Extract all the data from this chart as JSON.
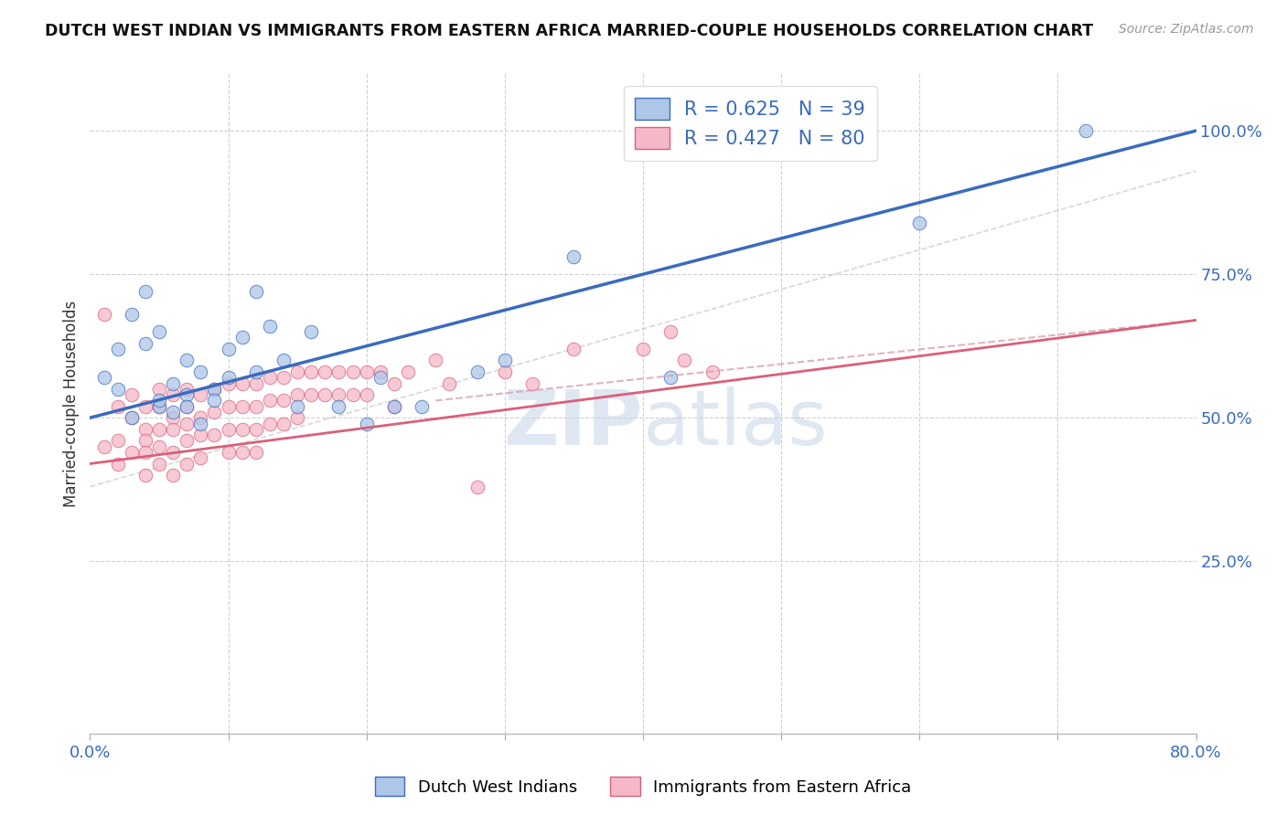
{
  "title": "DUTCH WEST INDIAN VS IMMIGRANTS FROM EASTERN AFRICA MARRIED-COUPLE HOUSEHOLDS CORRELATION CHART",
  "source": "Source: ZipAtlas.com",
  "ylabel": "Married-couple Households",
  "ytick_labels": [
    "",
    "25.0%",
    "50.0%",
    "75.0%",
    "100.0%"
  ],
  "ytick_vals": [
    0.0,
    0.25,
    0.5,
    0.75,
    1.0
  ],
  "xtick_vals": [
    0.0,
    0.1,
    0.2,
    0.3,
    0.4,
    0.5,
    0.6,
    0.7,
    0.8
  ],
  "xlim": [
    0.0,
    0.8
  ],
  "ylim": [
    -0.05,
    1.1
  ],
  "blue_R": 0.625,
  "blue_N": 39,
  "pink_R": 0.427,
  "pink_N": 80,
  "legend_label_blue": "Dutch West Indians",
  "legend_label_pink": "Immigrants from Eastern Africa",
  "blue_color": "#aec6e8",
  "blue_line_color": "#3a6bbd",
  "pink_color": "#f5b8c8",
  "pink_line_color": "#d9607a",
  "pink_dashed_color": "#d9a0b0",
  "dashed_line_color": "#c8c8c8",
  "watermark_zip": "ZIP",
  "watermark_atlas": "atlas",
  "blue_line_y0": 0.5,
  "blue_line_y1": 1.0,
  "pink_line_y0": 0.42,
  "pink_line_y1": 0.67,
  "blue_scatter_x": [
    0.01,
    0.02,
    0.02,
    0.03,
    0.03,
    0.04,
    0.04,
    0.05,
    0.05,
    0.05,
    0.06,
    0.06,
    0.07,
    0.07,
    0.07,
    0.08,
    0.08,
    0.09,
    0.09,
    0.1,
    0.1,
    0.11,
    0.12,
    0.12,
    0.13,
    0.14,
    0.15,
    0.16,
    0.18,
    0.2,
    0.21,
    0.22,
    0.24,
    0.28,
    0.3,
    0.35,
    0.42,
    0.6,
    0.72
  ],
  "blue_scatter_y": [
    0.57,
    0.55,
    0.62,
    0.5,
    0.68,
    0.72,
    0.63,
    0.52,
    0.65,
    0.53,
    0.56,
    0.51,
    0.54,
    0.6,
    0.52,
    0.58,
    0.49,
    0.55,
    0.53,
    0.57,
    0.62,
    0.64,
    0.58,
    0.72,
    0.66,
    0.6,
    0.52,
    0.65,
    0.52,
    0.49,
    0.57,
    0.52,
    0.52,
    0.58,
    0.6,
    0.78,
    0.57,
    0.84,
    1.0
  ],
  "pink_scatter_x": [
    0.01,
    0.01,
    0.02,
    0.02,
    0.02,
    0.03,
    0.03,
    0.03,
    0.04,
    0.04,
    0.04,
    0.04,
    0.04,
    0.05,
    0.05,
    0.05,
    0.05,
    0.05,
    0.06,
    0.06,
    0.06,
    0.06,
    0.06,
    0.07,
    0.07,
    0.07,
    0.07,
    0.07,
    0.08,
    0.08,
    0.08,
    0.08,
    0.09,
    0.09,
    0.09,
    0.1,
    0.1,
    0.1,
    0.1,
    0.11,
    0.11,
    0.11,
    0.11,
    0.12,
    0.12,
    0.12,
    0.12,
    0.13,
    0.13,
    0.13,
    0.14,
    0.14,
    0.14,
    0.15,
    0.15,
    0.15,
    0.16,
    0.16,
    0.17,
    0.17,
    0.18,
    0.18,
    0.19,
    0.19,
    0.2,
    0.2,
    0.21,
    0.22,
    0.22,
    0.23,
    0.25,
    0.26,
    0.28,
    0.3,
    0.32,
    0.35,
    0.4,
    0.42,
    0.43,
    0.45
  ],
  "pink_scatter_y": [
    0.68,
    0.45,
    0.52,
    0.46,
    0.42,
    0.54,
    0.5,
    0.44,
    0.52,
    0.48,
    0.46,
    0.44,
    0.4,
    0.55,
    0.52,
    0.48,
    0.45,
    0.42,
    0.54,
    0.5,
    0.48,
    0.44,
    0.4,
    0.55,
    0.52,
    0.49,
    0.46,
    0.42,
    0.54,
    0.5,
    0.47,
    0.43,
    0.55,
    0.51,
    0.47,
    0.56,
    0.52,
    0.48,
    0.44,
    0.56,
    0.52,
    0.48,
    0.44,
    0.56,
    0.52,
    0.48,
    0.44,
    0.57,
    0.53,
    0.49,
    0.57,
    0.53,
    0.49,
    0.58,
    0.54,
    0.5,
    0.58,
    0.54,
    0.58,
    0.54,
    0.58,
    0.54,
    0.58,
    0.54,
    0.58,
    0.54,
    0.58,
    0.56,
    0.52,
    0.58,
    0.6,
    0.56,
    0.38,
    0.58,
    0.56,
    0.62,
    0.62,
    0.65,
    0.6,
    0.58
  ]
}
